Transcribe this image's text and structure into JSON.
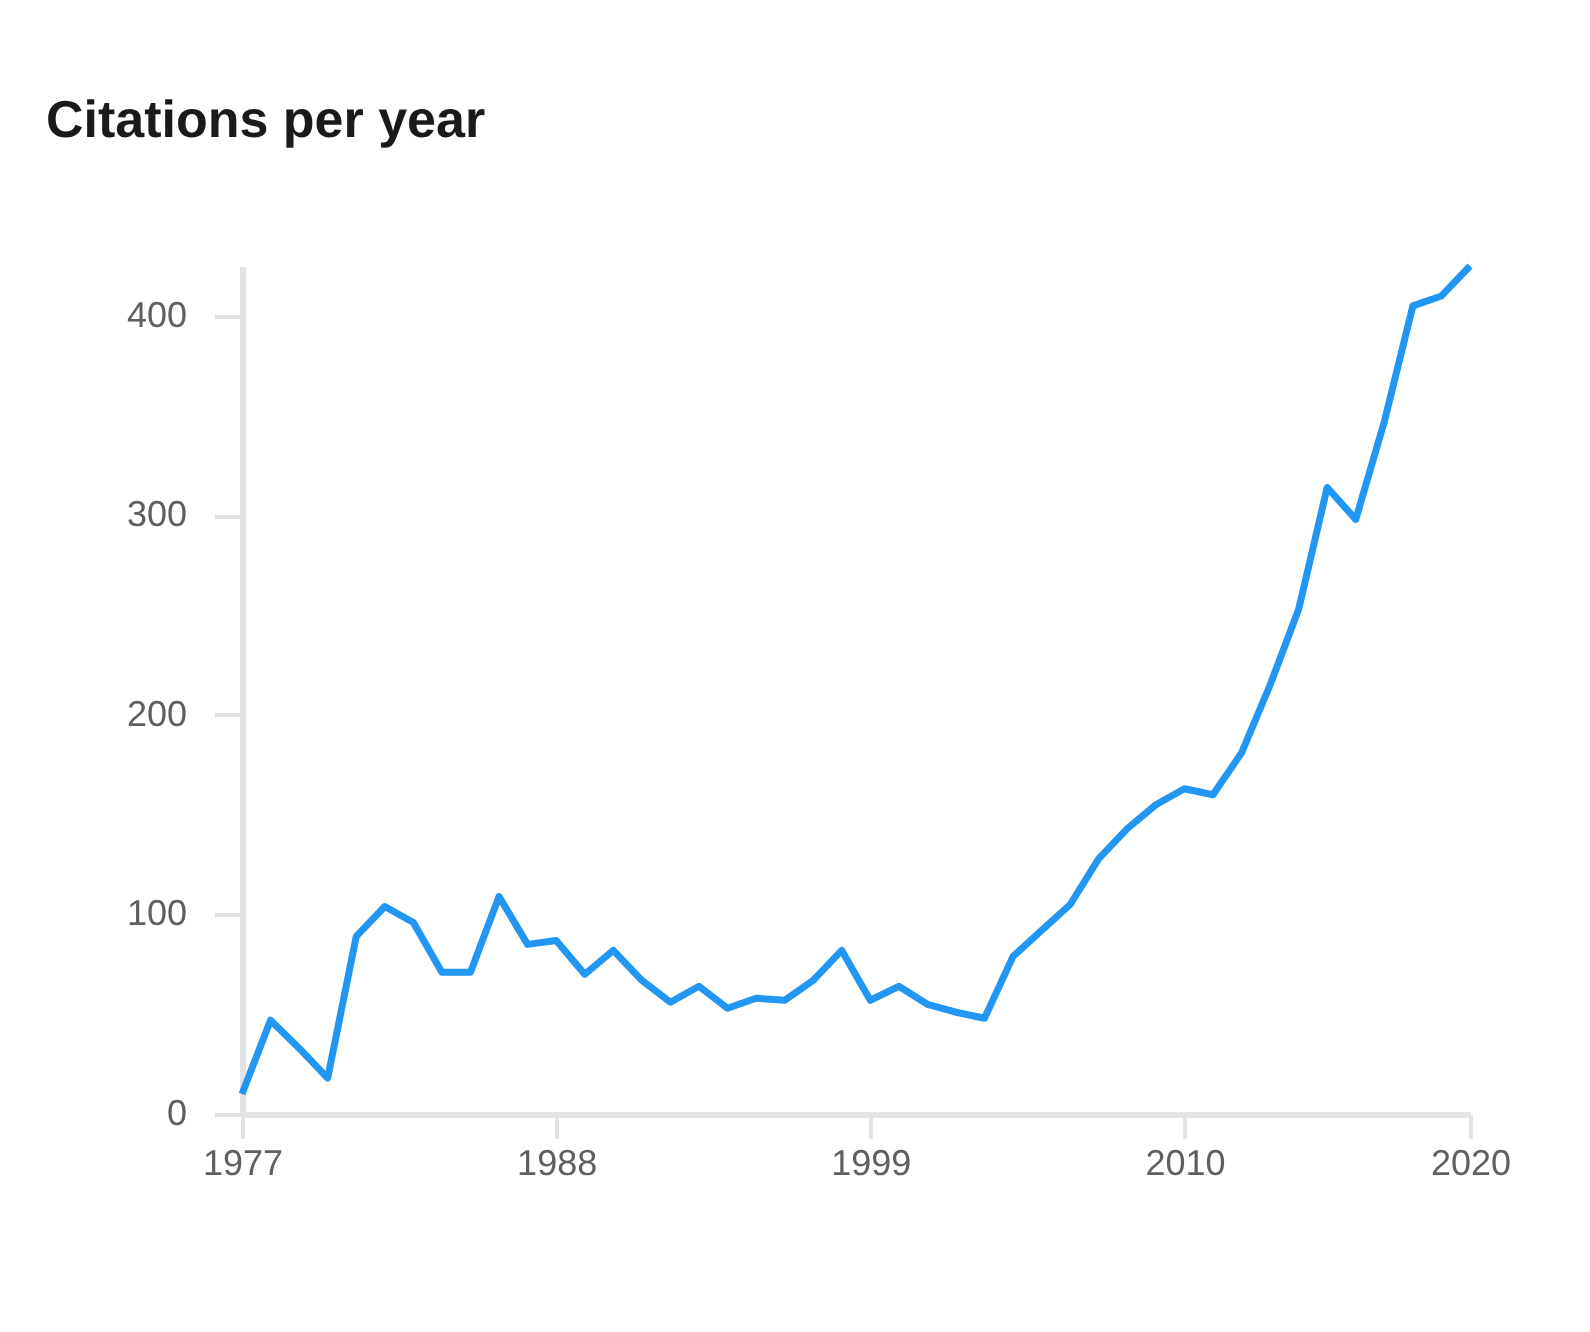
{
  "chart_data": {
    "type": "line",
    "title": "Citations per year",
    "x": [
      1977,
      1978,
      1979,
      1980,
      1981,
      1982,
      1983,
      1984,
      1985,
      1986,
      1987,
      1988,
      1989,
      1990,
      1991,
      1992,
      1993,
      1994,
      1995,
      1996,
      1997,
      1998,
      1999,
      2000,
      2001,
      2002,
      2003,
      2004,
      2005,
      2006,
      2007,
      2008,
      2009,
      2010,
      2011,
      2012,
      2013,
      2014,
      2015,
      2016,
      2017,
      2018,
      2019,
      2020
    ],
    "series": [
      {
        "color": "#2196f3",
        "values": [
          10,
          47,
          33,
          18,
          89,
          104,
          96,
          71,
          71,
          109,
          85,
          87,
          70,
          82,
          67,
          56,
          64,
          53,
          58,
          57,
          67,
          82,
          57,
          64,
          55,
          51,
          48,
          79,
          92,
          105,
          128,
          143,
          155,
          163,
          160,
          181,
          215,
          253,
          314,
          298,
          347,
          405,
          410,
          425
        ]
      }
    ],
    "xlim": [
      1977,
      2020
    ],
    "xticks": [
      1977,
      1988,
      1999,
      2010,
      2020
    ],
    "ylim": [
      0,
      425
    ],
    "yticks": [
      0,
      100,
      200,
      300,
      400
    ],
    "grid": false,
    "marker": "none",
    "line_style": "solid"
  }
}
